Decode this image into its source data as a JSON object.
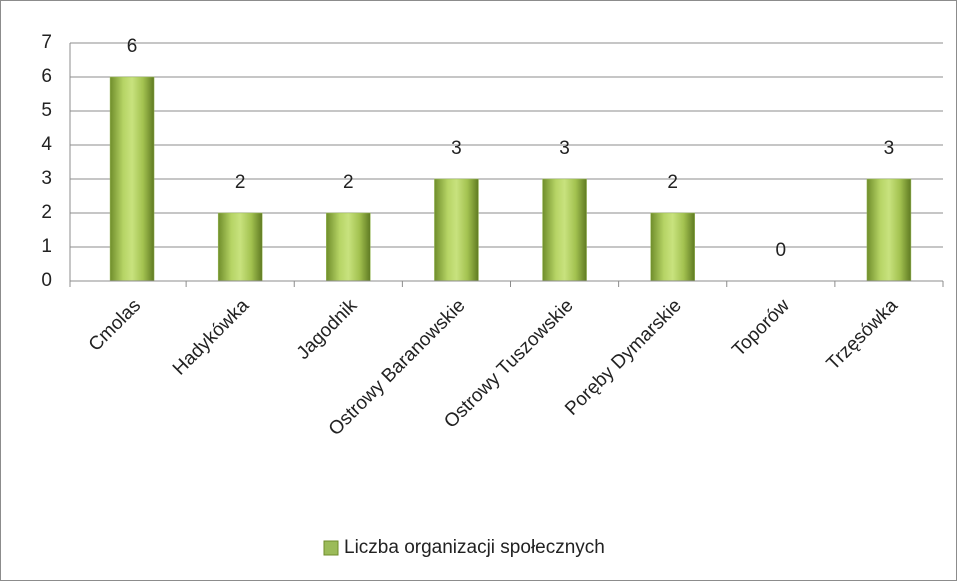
{
  "chart_data": {
    "type": "bar",
    "categories": [
      "Cmolas",
      "Hadykówka",
      "Jagodnik",
      "Ostrowy Baranowskie",
      "Ostrowy Tuszowskie",
      "Poręby Dymarskie",
      "Toporów",
      "Trzęsówka"
    ],
    "series": [
      {
        "name": "Liczba organizacji społecznych",
        "color": "#9bbb59",
        "values": [
          6,
          2,
          2,
          3,
          3,
          2,
          0,
          3
        ]
      }
    ],
    "ylim": [
      0,
      7
    ],
    "yticks": [
      0,
      1,
      2,
      3,
      4,
      5,
      6,
      7
    ],
    "grid": true,
    "legend": "bottom"
  }
}
